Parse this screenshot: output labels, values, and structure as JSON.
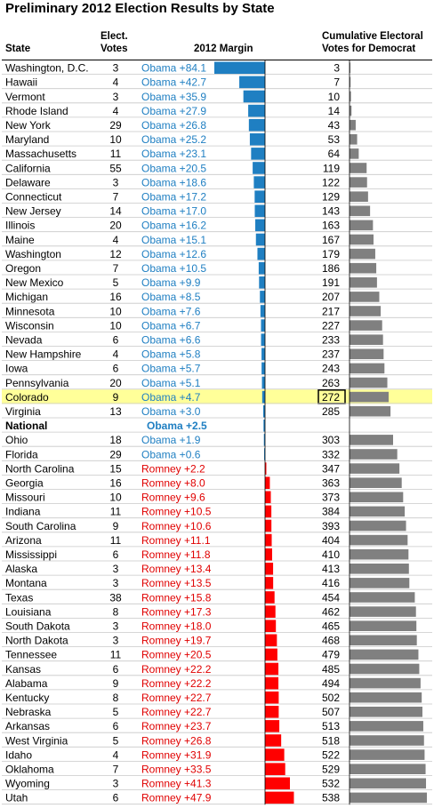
{
  "title": "Preliminary 2012 Election Results by State",
  "headers": {
    "state": "State",
    "votes_line1": "Elect.",
    "votes_line2": "Votes",
    "margin": "2012 Margin",
    "cum_line1": "Cumulative Electoral",
    "cum_line2": "Votes for Democrat"
  },
  "colors": {
    "obama_bar": "#1f7fc2",
    "obama_text": "#1f7fc2",
    "romney_bar": "#ff0000",
    "romney_text": "#e00000",
    "cum_bar": "#808080",
    "highlight_row": "#ffff99",
    "national_text": "#1f7fc2"
  },
  "highlight_box_value": "272",
  "chart_data": {
    "type": "table",
    "margin_axis_range": [
      -84.1,
      47.9
    ],
    "cumulative_axis_range": [
      0,
      538
    ],
    "rows": [
      {
        "state": "Washington, D.C.",
        "votes": "3",
        "label": "Obama +84.1",
        "margin": -84.1,
        "cum": "3"
      },
      {
        "state": "Hawaii",
        "votes": "4",
        "label": "Obama +42.7",
        "margin": -42.7,
        "cum": "7"
      },
      {
        "state": "Vermont",
        "votes": "3",
        "label": "Obama +35.9",
        "margin": -35.9,
        "cum": "10"
      },
      {
        "state": "Rhode Island",
        "votes": "4",
        "label": "Obama +27.9",
        "margin": -27.9,
        "cum": "14"
      },
      {
        "state": "New York",
        "votes": "29",
        "label": "Obama +26.8",
        "margin": -26.8,
        "cum": "43"
      },
      {
        "state": "Maryland",
        "votes": "10",
        "label": "Obama +25.2",
        "margin": -25.2,
        "cum": "53"
      },
      {
        "state": "Massachusetts",
        "votes": "11",
        "label": "Obama +23.1",
        "margin": -23.1,
        "cum": "64"
      },
      {
        "state": "California",
        "votes": "55",
        "label": "Obama +20.5",
        "margin": -20.5,
        "cum": "119"
      },
      {
        "state": "Delaware",
        "votes": "3",
        "label": "Obama +18.6",
        "margin": -18.6,
        "cum": "122"
      },
      {
        "state": "Connecticut",
        "votes": "7",
        "label": "Obama +17.2",
        "margin": -17.2,
        "cum": "129"
      },
      {
        "state": "New Jersey",
        "votes": "14",
        "label": "Obama +17.0",
        "margin": -17.0,
        "cum": "143"
      },
      {
        "state": "Illinois",
        "votes": "20",
        "label": "Obama +16.2",
        "margin": -16.2,
        "cum": "163"
      },
      {
        "state": "Maine",
        "votes": "4",
        "label": "Obama +15.1",
        "margin": -15.1,
        "cum": "167"
      },
      {
        "state": "Washington",
        "votes": "12",
        "label": "Obama +12.6",
        "margin": -12.6,
        "cum": "179"
      },
      {
        "state": "Oregon",
        "votes": "7",
        "label": "Obama +10.5",
        "margin": -10.5,
        "cum": "186"
      },
      {
        "state": "New Mexico",
        "votes": "5",
        "label": "Obama +9.9",
        "margin": -9.9,
        "cum": "191"
      },
      {
        "state": "Michigan",
        "votes": "16",
        "label": "Obama +8.5",
        "margin": -8.5,
        "cum": "207"
      },
      {
        "state": "Minnesota",
        "votes": "10",
        "label": "Obama +7.6",
        "margin": -7.6,
        "cum": "217"
      },
      {
        "state": "Wisconsin",
        "votes": "10",
        "label": "Obama +6.7",
        "margin": -6.7,
        "cum": "227"
      },
      {
        "state": "Nevada",
        "votes": "6",
        "label": "Obama +6.6",
        "margin": -6.6,
        "cum": "233"
      },
      {
        "state": "New Hampshire",
        "votes": "4",
        "label": "Obama +5.8",
        "margin": -5.8,
        "cum": "237"
      },
      {
        "state": "Iowa",
        "votes": "6",
        "label": "Obama +5.7",
        "margin": -5.7,
        "cum": "243"
      },
      {
        "state": "Pennsylvania",
        "votes": "20",
        "label": "Obama +5.1",
        "margin": -5.1,
        "cum": "263"
      },
      {
        "state": "Colorado",
        "votes": "9",
        "label": "Obama +4.7",
        "margin": -4.7,
        "cum": "272",
        "highlight": true
      },
      {
        "state": "Virginia",
        "votes": "13",
        "label": "Obama +3.0",
        "margin": -3.0,
        "cum": "285"
      },
      {
        "state": "National",
        "votes": "",
        "label": "Obama +2.5",
        "margin": -2.5,
        "cum": "",
        "national": true
      },
      {
        "state": "Ohio",
        "votes": "18",
        "label": "Obama +1.9",
        "margin": -1.9,
        "cum": "303"
      },
      {
        "state": "Florida",
        "votes": "29",
        "label": "Obama +0.6",
        "margin": -0.6,
        "cum": "332"
      },
      {
        "state": "North Carolina",
        "votes": "15",
        "label": "Romney +2.2",
        "margin": 2.2,
        "cum": "347"
      },
      {
        "state": "Georgia",
        "votes": "16",
        "label": "Romney +8.0",
        "margin": 8.0,
        "cum": "363"
      },
      {
        "state": "Missouri",
        "votes": "10",
        "label": "Romney +9.6",
        "margin": 9.6,
        "cum": "373"
      },
      {
        "state": "Indiana",
        "votes": "11",
        "label": "Romney +10.5",
        "margin": 10.5,
        "cum": "384"
      },
      {
        "state": "South Carolina",
        "votes": "9",
        "label": "Romney +10.6",
        "margin": 10.6,
        "cum": "393"
      },
      {
        "state": "Arizona",
        "votes": "11",
        "label": "Romney +11.1",
        "margin": 11.1,
        "cum": "404"
      },
      {
        "state": "Mississippi",
        "votes": "6",
        "label": "Romney +11.8",
        "margin": 11.8,
        "cum": "410"
      },
      {
        "state": "Alaska",
        "votes": "3",
        "label": "Romney +13.4",
        "margin": 13.4,
        "cum": "413"
      },
      {
        "state": "Montana",
        "votes": "3",
        "label": "Romney +13.5",
        "margin": 13.5,
        "cum": "416"
      },
      {
        "state": "Texas",
        "votes": "38",
        "label": "Romney +15.8",
        "margin": 15.8,
        "cum": "454"
      },
      {
        "state": "Louisiana",
        "votes": "8",
        "label": "Romney +17.3",
        "margin": 17.3,
        "cum": "462"
      },
      {
        "state": "South Dakota",
        "votes": "3",
        "label": "Romney +18.0",
        "margin": 18.0,
        "cum": "465"
      },
      {
        "state": "North Dakota",
        "votes": "3",
        "label": "Romney +19.7",
        "margin": 19.7,
        "cum": "468"
      },
      {
        "state": "Tennessee",
        "votes": "11",
        "label": "Romney +20.5",
        "margin": 20.5,
        "cum": "479"
      },
      {
        "state": "Kansas",
        "votes": "6",
        "label": "Romney +22.2",
        "margin": 22.2,
        "cum": "485"
      },
      {
        "state": "Alabama",
        "votes": "9",
        "label": "Romney +22.2",
        "margin": 22.2,
        "cum": "494"
      },
      {
        "state": "Kentucky",
        "votes": "8",
        "label": "Romney +22.7",
        "margin": 22.7,
        "cum": "502"
      },
      {
        "state": "Nebraska",
        "votes": "5",
        "label": "Romney +22.7",
        "margin": 22.7,
        "cum": "507"
      },
      {
        "state": "Arkansas",
        "votes": "6",
        "label": "Romney +23.7",
        "margin": 23.7,
        "cum": "513"
      },
      {
        "state": "West Virginia",
        "votes": "5",
        "label": "Romney +26.8",
        "margin": 26.8,
        "cum": "518"
      },
      {
        "state": "Idaho",
        "votes": "4",
        "label": "Romney +31.9",
        "margin": 31.9,
        "cum": "522"
      },
      {
        "state": "Oklahoma",
        "votes": "7",
        "label": "Romney +33.5",
        "margin": 33.5,
        "cum": "529"
      },
      {
        "state": "Wyoming",
        "votes": "3",
        "label": "Romney +41.3",
        "margin": 41.3,
        "cum": "532"
      },
      {
        "state": "Utah",
        "votes": "6",
        "label": "Romney +47.9",
        "margin": 47.9,
        "cum": "538"
      }
    ]
  }
}
